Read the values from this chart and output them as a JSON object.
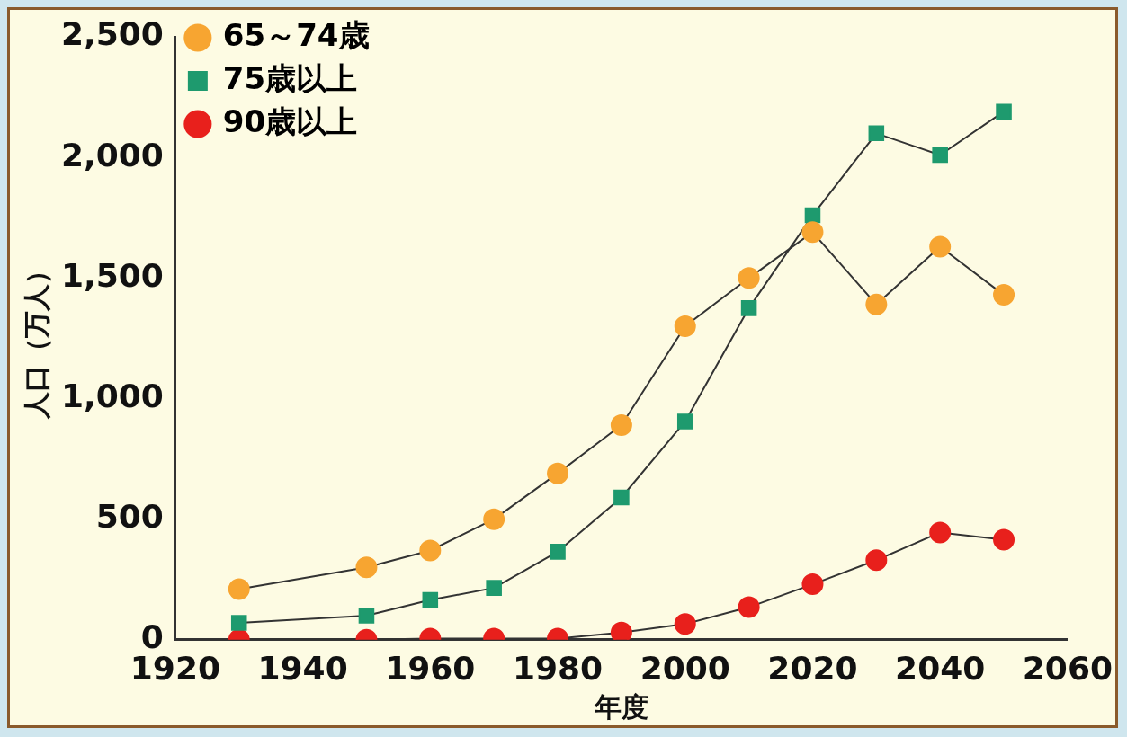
{
  "chart_data": {
    "type": "line",
    "xlabel": "年度",
    "ylabel": "人口（万人）",
    "xlim": [
      1920,
      2060
    ],
    "xticks": [
      1920,
      1940,
      1960,
      1980,
      2000,
      2020,
      2040,
      2060
    ],
    "ylim": [
      0,
      2500
    ],
    "yticks": [
      {
        "value": 0,
        "label": "0"
      },
      {
        "value": 500,
        "label": "500"
      },
      {
        "value": 1000,
        "label": "1,000"
      },
      {
        "value": 1500,
        "label": "1,500"
      },
      {
        "value": 2000,
        "label": "2,000"
      },
      {
        "value": 2500,
        "label": "2,500"
      }
    ],
    "x": [
      1930,
      1950,
      1960,
      1970,
      1980,
      1990,
      2000,
      2010,
      2020,
      2030,
      2040,
      2050
    ],
    "series": [
      {
        "name": "65～74歳",
        "color": "#f7a531",
        "marker": "circle",
        "values": [
          210,
          300,
          370,
          500,
          690,
          890,
          1300,
          1500,
          1690,
          1390,
          1630,
          1430
        ]
      },
      {
        "name": "75歳以上",
        "color": "#1e9a6e",
        "marker": "square",
        "values": [
          70,
          100,
          165,
          215,
          365,
          590,
          905,
          1375,
          1760,
          2100,
          2010,
          2190
        ]
      },
      {
        "name": "90歳以上",
        "color": "#e8201c",
        "marker": "circle",
        "values": [
          0,
          0,
          5,
          5,
          5,
          30,
          65,
          135,
          230,
          330,
          445,
          415
        ]
      }
    ],
    "legend": "top left",
    "grid": false
  }
}
